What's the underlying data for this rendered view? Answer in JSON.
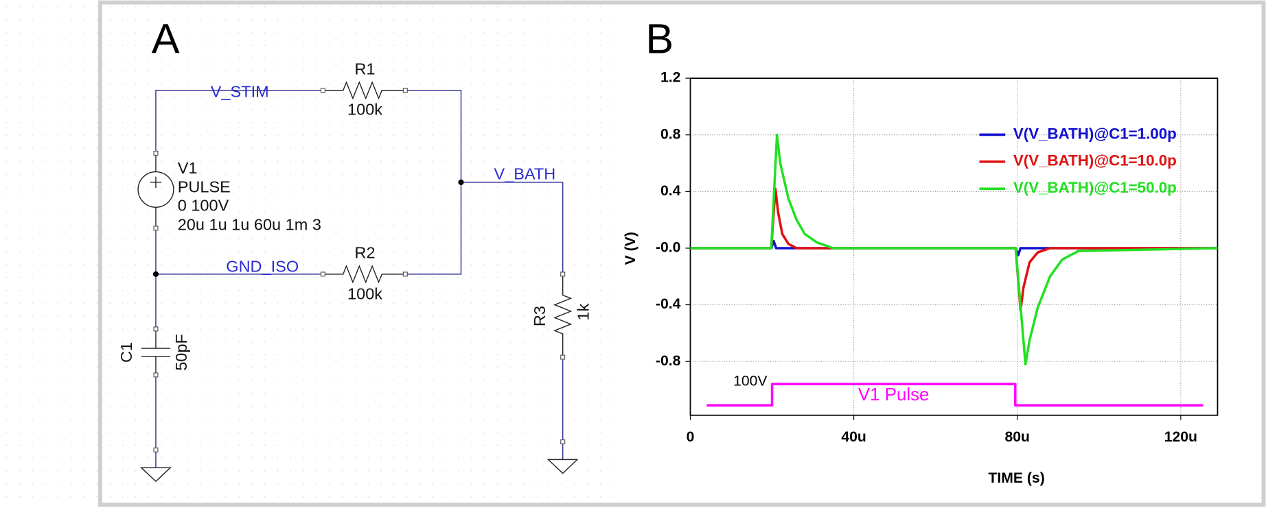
{
  "schematic": {
    "panel_label": "A",
    "nets": {
      "stim": "V_STIM",
      "bath": "V_BATH",
      "gnd_iso": "GND_ISO"
    },
    "r1": {
      "name": "R1",
      "value": "100k"
    },
    "r2": {
      "name": "R2",
      "value": "100k"
    },
    "r3": {
      "name": "R3",
      "value": "1k"
    },
    "c1": {
      "name": "C1",
      "value": "50pF"
    },
    "v1": {
      "name": "V1",
      "kind": "PULSE",
      "levels": "0 100V",
      "timing": "20u 1u 1u 60u 1m 3"
    }
  },
  "chart_data": {
    "type": "line",
    "panel_label": "B",
    "x_label": "TIME (s)",
    "y_label": "V (V)",
    "xlim": [
      0,
      0.000129
    ],
    "ylim": [
      -1.18,
      1.2
    ],
    "xticks": [
      0,
      {
        "value": 4e-05,
        "label": "40u"
      },
      {
        "value": 8e-05,
        "label": "80u"
      },
      {
        "value": 0.00012,
        "label": "120u"
      }
    ],
    "yticks": [
      1.2,
      0.8,
      0.4,
      {
        "value": 0,
        "label": "-0.0"
      },
      -0.4,
      -0.8
    ],
    "grid": true,
    "legend": "upper-right",
    "series": [
      {
        "name": "V(V_BATH)@C1=1.00p",
        "color": "#1010d0",
        "x": [
          0,
          1.98e-05,
          2.04e-05,
          2.1e-05,
          7.96e-05,
          8.02e-05,
          8.08e-05,
          0.000129
        ],
        "values": [
          0,
          0,
          0.05,
          0,
          0,
          -0.05,
          0,
          0
        ]
      },
      {
        "name": "V(V_BATH)@C1=10.0p",
        "color": "#e01010",
        "x": [
          0,
          1.98e-05,
          2.08e-05,
          2.15e-05,
          2.25e-05,
          2.4e-05,
          2.6e-05,
          7.96e-05,
          8.08e-05,
          8.15e-05,
          8.3e-05,
          8.5e-05,
          8.8e-05,
          0.000129
        ],
        "values": [
          0,
          0,
          0.42,
          0.25,
          0.1,
          0.03,
          0,
          0,
          -0.44,
          -0.28,
          -0.1,
          -0.03,
          0,
          0
        ]
      },
      {
        "name": "V(V_BATH)@C1=50.0p",
        "color": "#22e022",
        "x": [
          0,
          1.98e-05,
          2.12e-05,
          2.2e-05,
          2.4e-05,
          2.6e-05,
          2.8e-05,
          3.1e-05,
          3.5e-05,
          7.96e-05,
          8.2e-05,
          8.3e-05,
          8.5e-05,
          8.8e-05,
          9.1e-05,
          9.5e-05,
          0.000129
        ],
        "values": [
          0,
          0,
          0.8,
          0.6,
          0.35,
          0.2,
          0.1,
          0.04,
          0,
          0,
          -0.82,
          -0.65,
          -0.42,
          -0.2,
          -0.08,
          -0.02,
          0
        ]
      }
    ],
    "pulse": {
      "name": "V1 Pulse",
      "level_label": "100V",
      "color": "#ff00ff",
      "x": [
        4e-06,
        2e-05,
        2e-05,
        7.95e-05,
        7.95e-05,
        0.0001255
      ],
      "values": [
        -1.11,
        -1.11,
        -0.96,
        -0.96,
        -1.11,
        -1.11
      ]
    }
  }
}
